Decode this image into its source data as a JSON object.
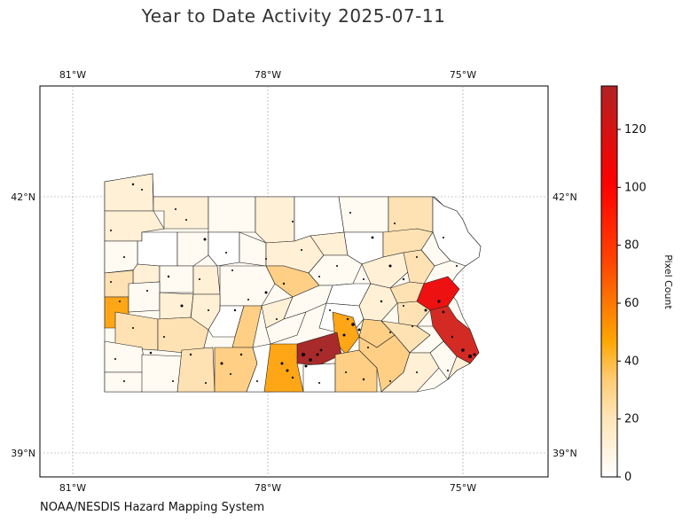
{
  "title": "Year to Date Activity 2025-07-11",
  "credit": "NOAA/NESDIS Hazard Mapping System",
  "axes": {
    "lon_ticks": [
      "81°W",
      "78°W",
      "75°W"
    ],
    "lat_ticks": [
      "42°N",
      "39°N"
    ]
  },
  "colorbar": {
    "label": "Pixel Count",
    "ticks": [
      "0",
      "20",
      "40",
      "60",
      "80",
      "100",
      "120"
    ],
    "max": 135,
    "colors": [
      "#ffffff",
      "#fde6b8",
      "#ffcb74",
      "#ffa500",
      "#ff4500",
      "#ff0000",
      "#b22222"
    ]
  },
  "map_region": "Pennsylvania counties",
  "fill_legend": {
    "very_low": "#fffbf2",
    "low": "#fff0d6",
    "mid_low": "#ffe2b4",
    "mid": "#ffcf86",
    "orange": "#ffa616",
    "bright_red": "#ee1111",
    "red": "#d42a24",
    "dark_red": "#a82a2a"
  }
}
